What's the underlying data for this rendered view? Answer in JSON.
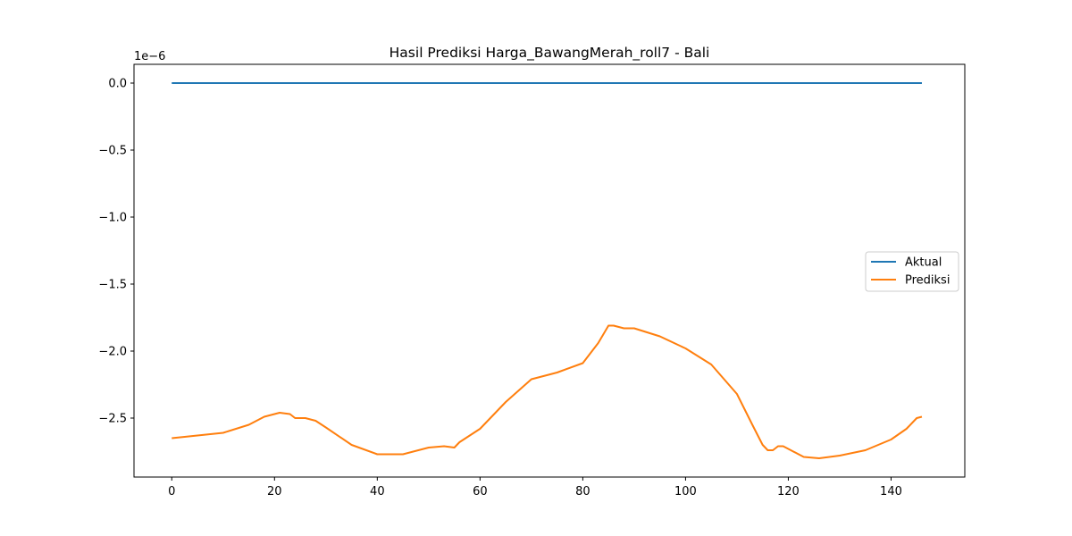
{
  "chart_data": {
    "type": "line",
    "title": "Hasil Prediksi Harga_BawangMerah_roll7 - Bali",
    "xlabel": "",
    "ylabel": "",
    "y_offset_label": "1e−6",
    "xlim": [
      -7.35,
      154.35
    ],
    "ylim": [
      -2.94,
      0.14
    ],
    "x_ticks": [
      0,
      20,
      40,
      60,
      80,
      100,
      120,
      140
    ],
    "x_tick_labels": [
      "0",
      "20",
      "40",
      "60",
      "80",
      "100",
      "120",
      "140"
    ],
    "y_ticks": [
      0.0,
      -0.5,
      -1.0,
      -1.5,
      -2.0,
      -2.5
    ],
    "y_tick_labels": [
      "0.0",
      "−0.5",
      "−1.0",
      "−1.5",
      "−2.0",
      "−2.5"
    ],
    "grid": false,
    "legend_position": "center-right",
    "series": [
      {
        "name": "Aktual",
        "color": "#1f77b4",
        "x": [
          0,
          146
        ],
        "y": [
          0.0,
          0.0
        ]
      },
      {
        "name": "Prediksi",
        "color": "#ff7f0e",
        "x": [
          0,
          5,
          10,
          15,
          18,
          21,
          23,
          24,
          26,
          28,
          30,
          35,
          40,
          45,
          50,
          53,
          55,
          56,
          60,
          65,
          70,
          75,
          80,
          83,
          85,
          86,
          87,
          88,
          90,
          95,
          100,
          105,
          110,
          113,
          115,
          116,
          117,
          118,
          119,
          120,
          123,
          126,
          130,
          135,
          140,
          143,
          145,
          146
        ],
        "y": [
          -2.65,
          -2.63,
          -2.61,
          -2.55,
          -2.49,
          -2.46,
          -2.47,
          -2.5,
          -2.5,
          -2.52,
          -2.57,
          -2.7,
          -2.77,
          -2.77,
          -2.72,
          -2.71,
          -2.72,
          -2.68,
          -2.58,
          -2.38,
          -2.21,
          -2.16,
          -2.09,
          -1.94,
          -1.81,
          -1.81,
          -1.82,
          -1.83,
          -1.83,
          -1.89,
          -1.98,
          -2.1,
          -2.32,
          -2.55,
          -2.7,
          -2.74,
          -2.74,
          -2.71,
          -2.71,
          -2.73,
          -2.79,
          -2.8,
          -2.78,
          -2.74,
          -2.66,
          -2.58,
          -2.5,
          -2.49
        ]
      }
    ]
  }
}
